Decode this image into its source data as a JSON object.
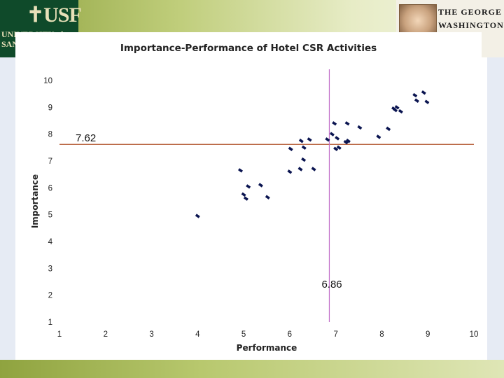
{
  "header": {
    "left_logo": {
      "mark": "✝USF",
      "line": "UNIVERSITY of\nSAN"
    },
    "right_logo": {
      "text": "THE GEORGE\nWASHINGTON\nSITY\nON DC"
    }
  },
  "colors": {
    "banner_green": "#8fa33f",
    "point": "#0a1450",
    "hline": "#b0522a",
    "vline": "#c06cc8"
  },
  "chart_data": {
    "type": "scatter",
    "title": "Importance-Performance of Hotel CSR Activities",
    "xlabel": "Performance",
    "ylabel": "Importance",
    "xlim": [
      1,
      10
    ],
    "ylim": [
      1,
      10
    ],
    "xticks": [
      "1",
      "2",
      "3",
      "4",
      "5",
      "6",
      "7",
      "8",
      "9",
      "10"
    ],
    "yticks": [
      "1",
      "2",
      "3",
      "4",
      "5",
      "6",
      "7",
      "8",
      "9",
      "10"
    ],
    "grid": false,
    "reference_lines": {
      "horizontal": {
        "value": 7.62,
        "label": "7.62"
      },
      "vertical": {
        "value": 6.86,
        "label": "6.86"
      }
    },
    "points": [
      [
        4.0,
        4.95
      ],
      [
        4.93,
        6.65
      ],
      [
        5.0,
        5.75
      ],
      [
        5.05,
        5.6
      ],
      [
        5.1,
        6.05
      ],
      [
        5.37,
        6.1
      ],
      [
        5.52,
        5.65
      ],
      [
        6.0,
        6.6
      ],
      [
        6.02,
        7.45
      ],
      [
        6.23,
        6.7
      ],
      [
        6.25,
        7.75
      ],
      [
        6.3,
        7.05
      ],
      [
        6.31,
        7.5
      ],
      [
        6.43,
        7.8
      ],
      [
        6.52,
        6.7
      ],
      [
        6.82,
        7.8
      ],
      [
        6.92,
        8.0
      ],
      [
        6.97,
        8.4
      ],
      [
        7.0,
        7.45
      ],
      [
        7.03,
        7.85
      ],
      [
        7.07,
        7.5
      ],
      [
        7.22,
        7.7
      ],
      [
        7.25,
        8.4
      ],
      [
        7.27,
        7.75
      ],
      [
        7.52,
        8.25
      ],
      [
        7.93,
        7.9
      ],
      [
        8.14,
        8.2
      ],
      [
        8.26,
        8.95
      ],
      [
        8.29,
        8.9
      ],
      [
        8.33,
        9.0
      ],
      [
        8.41,
        8.85
      ],
      [
        8.72,
        9.45
      ],
      [
        8.76,
        9.25
      ],
      [
        8.91,
        9.55
      ],
      [
        8.98,
        9.2
      ]
    ]
  }
}
